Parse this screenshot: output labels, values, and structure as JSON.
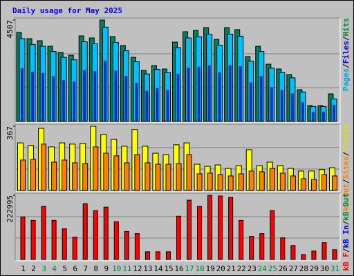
{
  "chart_data": {
    "type": "bar",
    "title": "Daily usage for May 2025",
    "separator": "/",
    "categories": [
      "1",
      "2",
      "3",
      "4",
      "5",
      "6",
      "7",
      "8",
      "9",
      "10",
      "11",
      "12",
      "13",
      "14",
      "15",
      "16",
      "17",
      "18",
      "19",
      "20",
      "21",
      "22",
      "23",
      "24",
      "25",
      "26",
      "27",
      "28",
      "29",
      "30",
      "31"
    ],
    "category_colors": [
      "#000000",
      "#000000",
      "#008040",
      "#008040",
      "#000000",
      "#000000",
      "#000000",
      "#000000",
      "#000000",
      "#008040",
      "#008040",
      "#000000",
      "#000000",
      "#000000",
      "#000000",
      "#000000",
      "#008040",
      "#008040",
      "#000000",
      "#000000",
      "#000000",
      "#000000",
      "#000000",
      "#008040",
      "#008040",
      "#000000",
      "#000000",
      "#000000",
      "#000000",
      "#000000",
      "#008040"
    ],
    "panels": [
      {
        "ylim": [
          0,
          4507
        ],
        "yticks": [
          4507
        ],
        "legend": [
          {
            "text": "Pages",
            "color": "#00a0e0"
          },
          {
            "text": "Files",
            "color": "#0000c0"
          },
          {
            "text": "Hits",
            "color": "#008040"
          }
        ],
        "series": [
          {
            "name": "Hits",
            "color": "#008060",
            "values": [
              3955,
              3679,
              3587,
              3342,
              3066,
              2943,
              3802,
              3710,
              4507,
              3771,
              3373,
              2851,
              2269,
              2483,
              2330,
              3526,
              3986,
              4047,
              4170,
              3649,
              4170,
              4078,
              2882,
              3342,
              2545,
              2330,
              2085,
              1410,
              705,
              705,
              1226
            ]
          },
          {
            "name": "Pages",
            "color": "#00c0ff",
            "values": [
              3680,
              3420,
              3340,
              3110,
              2850,
              2740,
              3540,
              3450,
              4190,
              3510,
              3140,
              2650,
              2110,
              2310,
              2170,
              3280,
              3710,
              3760,
              3880,
              3390,
              3880,
              3790,
              2680,
              3110,
              2370,
              2170,
              1940,
              1310,
              660,
              660,
              1000
            ]
          },
          {
            "name": "Files",
            "color": "#0030c0",
            "values": [
              2370,
              2210,
              2150,
              2010,
              1840,
              1770,
              2280,
              2230,
              2700,
              2260,
              2020,
              1710,
              1360,
              1490,
              1400,
              2120,
              2390,
              2430,
              2500,
              2190,
              2500,
              2450,
              1730,
              2010,
              1530,
              1400,
              1250,
              850,
              420,
              420,
              740
            ]
          }
        ]
      },
      {
        "ylim": [
          0,
          367
        ],
        "yticks": [
          367
        ],
        "legend": [
          {
            "text": "kB Out",
            "color": "#ff8000"
          },
          {
            "text": "Sites",
            "color": "#ff8000"
          },
          {
            "text": "Visits",
            "color": "#e0e000"
          }
        ],
        "series": [
          {
            "name": "Visits",
            "color": "#ffff00",
            "values": [
              272,
              257,
              355,
              249,
              272,
              265,
              269,
              367,
              320,
              292,
              253,
              348,
              253,
              213,
              205,
              261,
              272,
              150,
              138,
              146,
              126,
              142,
              233,
              142,
              162,
              142,
              126,
              111,
              111,
              119,
              130
            ]
          },
          {
            "name": "Sites",
            "color": "#ff8000",
            "values": [
              174,
              178,
              265,
              162,
              174,
              158,
              154,
              249,
              213,
              198,
              158,
              205,
              158,
              150,
              150,
              154,
              205,
              95,
              99,
              91,
              83,
              95,
              111,
              107,
              126,
              99,
              83,
              67,
              63,
              91,
              83
            ]
          }
        ]
      },
      {
        "ylim": [
          0,
          222995
        ],
        "yticks": [
          222995
        ],
        "legend": [
          {
            "text": "kB F",
            "color": "#ff0000"
          },
          {
            "text": "kB In",
            "color": "#0000ff"
          },
          {
            "text": "kB Out",
            "color": "#008040"
          }
        ],
        "series": [
          {
            "name": "kB F",
            "color": "#ff0000",
            "values": [
              147860,
              135740,
              184220,
              135740,
              106650,
              77570,
              193920,
              169680,
              181800,
              130900,
              96960,
              89690,
              26660,
              26660,
              26660,
              150290,
              206040,
              184220,
              222995,
              220580,
              215740,
              135740,
              79990,
              89690,
              169680,
              75140,
              48480,
              16970,
              29090,
              58180,
              33940
            ]
          }
        ]
      }
    ]
  }
}
